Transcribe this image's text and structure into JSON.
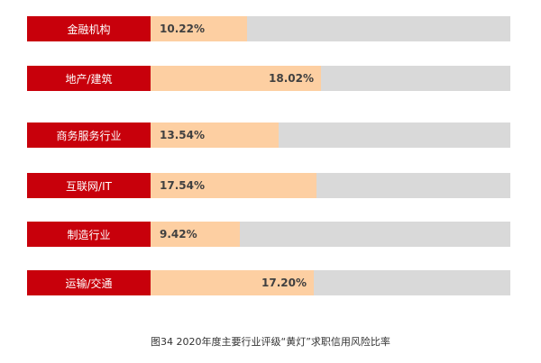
{
  "chart_data": {
    "type": "bar",
    "orientation": "horizontal",
    "categories": [
      "金融机构",
      "地产/建筑",
      "商务服务行业",
      "互联网/IT",
      "制造行业",
      "运输/交通"
    ],
    "values": [
      10.22,
      18.02,
      13.54,
      17.54,
      9.42,
      17.2
    ],
    "value_labels": [
      "10.22%",
      "18.02%",
      "13.54%",
      "17.54%",
      "9.42%",
      "17.20%"
    ],
    "xlim": [
      0,
      38
    ],
    "grid": false,
    "colors": {
      "category": "#c8000b",
      "fill": "#fdcfa2",
      "track": "#d9d9d9"
    }
  },
  "caption": "图34   2020年度主要行业评级“黄灯”求职信用风险比率"
}
